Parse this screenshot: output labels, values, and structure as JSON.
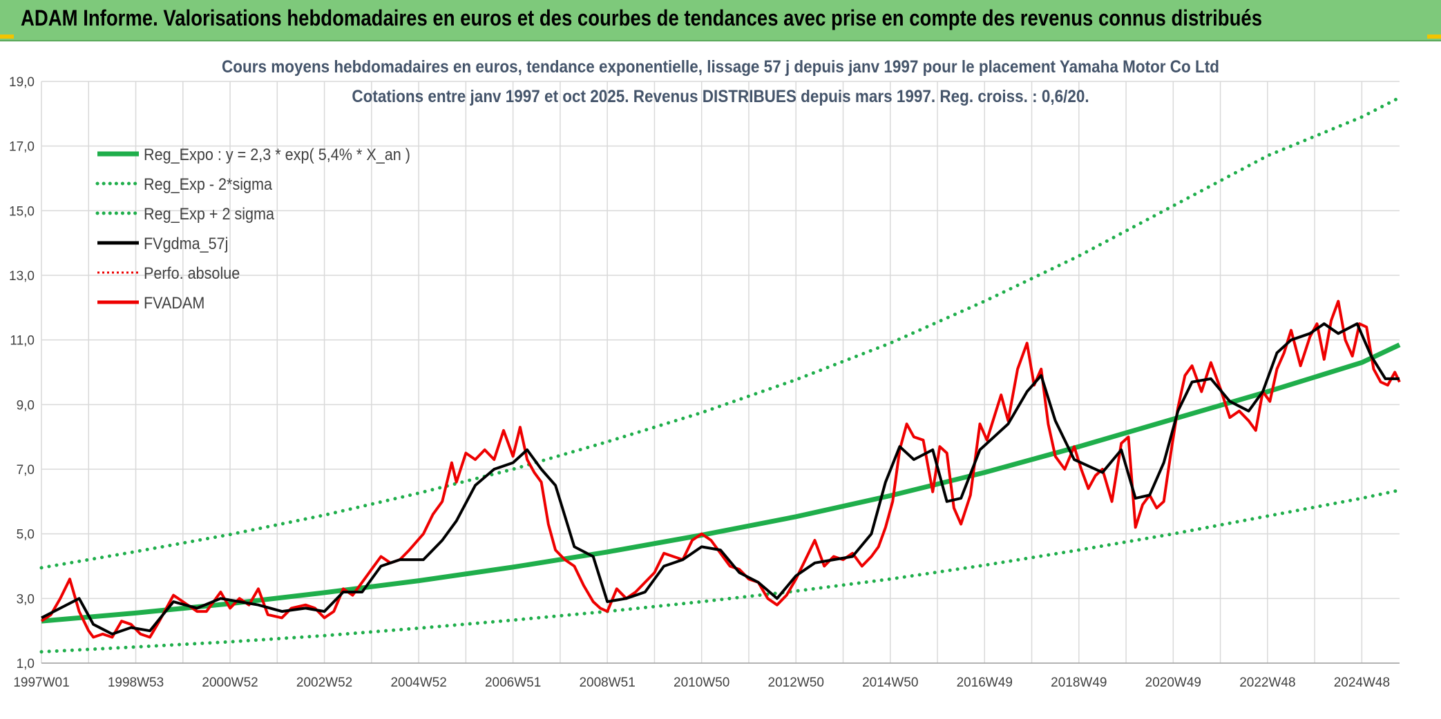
{
  "banner": {
    "title": "ADAM Informe. Valorisations hebdomadaires en euros et des courbes de tendances avec prise en compte des revenus connus distribués"
  },
  "colors": {
    "banner_bg": "#7ec97b",
    "trend": "#1fae4b",
    "band": "#1fae4b",
    "smooth": "#000000",
    "price": "#ee0000",
    "perf": "#ee0000",
    "grid": "#d9d9d9",
    "title_text": "#44546a"
  },
  "chart_data": {
    "type": "line",
    "title": "Cours moyens hebdomadaires en euros, tendance exponentielle, lissage 57 j depuis janv 1997 pour le placement Yamaha Motor Co Ltd",
    "subtitle": "Cotations entre janv 1997 et oct 2025. Revenus DISTRIBUES depuis mars 1997. Reg. croiss. : 0,6/20.",
    "xlabel": "",
    "ylabel": "",
    "x_range": [
      1997.0,
      2025.8
    ],
    "ylim": [
      1.0,
      19.0
    ],
    "y_ticks": [
      "1,0",
      "3,0",
      "5,0",
      "7,0",
      "9,0",
      "11,0",
      "13,0",
      "15,0",
      "17,0",
      "19,0"
    ],
    "y_tick_values": [
      1,
      3,
      5,
      7,
      9,
      11,
      13,
      15,
      17,
      19
    ],
    "x_ticks": [
      "1997W01",
      "1998W53",
      "2000W52",
      "2002W52",
      "2004W52",
      "2006W51",
      "2008W51",
      "2010W50",
      "2012W50",
      "2014W50",
      "2016W49",
      "2018W49",
      "2020W49",
      "2022W48",
      "2024W48"
    ],
    "x_tick_values": [
      1997.0,
      1999.0,
      2001.0,
      2003.0,
      2005.0,
      2007.0,
      2009.0,
      2011.0,
      2013.0,
      2015.0,
      2017.0,
      2019.0,
      2021.0,
      2023.0,
      2025.0
    ],
    "legend_position": "top-left",
    "legend": [
      "Reg_Expo : y = 2,3 * exp( 5,4% *  X_an )",
      "Reg_Exp - 2*sigma",
      "Reg_Exp + 2 sigma",
      "FVgdma_57j",
      "Perfo. absolue",
      "FVADAM"
    ],
    "series": [
      {
        "name": "Reg_Expo : y = 2,3 * exp( 5,4% *  X_an )",
        "style": "solid-thick",
        "x": [
          1997.0,
          1999.0,
          2001.0,
          2003.0,
          2005.0,
          2007.0,
          2009.0,
          2011.0,
          2013.0,
          2015.0,
          2017.0,
          2019.0,
          2021.0,
          2023.0,
          2025.0,
          2025.8
        ],
        "values": [
          2.3,
          2.55,
          2.84,
          3.18,
          3.55,
          3.97,
          4.44,
          4.96,
          5.53,
          6.18,
          6.9,
          7.7,
          8.55,
          9.4,
          10.3,
          10.85
        ]
      },
      {
        "name": "Reg_Exp - 2*sigma",
        "style": "dotted",
        "x": [
          1997.0,
          1999.0,
          2001.0,
          2003.0,
          2005.0,
          2007.0,
          2009.0,
          2011.0,
          2013.0,
          2015.0,
          2017.0,
          2019.0,
          2021.0,
          2023.0,
          2025.0,
          2025.8
        ],
        "values": [
          1.35,
          1.5,
          1.66,
          1.85,
          2.08,
          2.33,
          2.6,
          2.9,
          3.23,
          3.6,
          4.03,
          4.5,
          5.0,
          5.55,
          6.1,
          6.35
        ]
      },
      {
        "name": "Reg_Exp + 2 sigma",
        "style": "dotted",
        "x": [
          1997.0,
          1999.0,
          2001.0,
          2003.0,
          2005.0,
          2007.0,
          2009.0,
          2011.0,
          2013.0,
          2015.0,
          2017.0,
          2019.0,
          2021.0,
          2023.0,
          2025.0,
          2025.8
        ],
        "values": [
          3.95,
          4.45,
          4.98,
          5.58,
          6.26,
          7.0,
          7.85,
          8.75,
          9.77,
          10.9,
          12.2,
          13.6,
          15.15,
          16.7,
          17.9,
          18.5
        ]
      },
      {
        "name": "FVgdma_57j",
        "style": "solid",
        "x": [
          1997.0,
          1997.4,
          1997.8,
          1998.1,
          1998.5,
          1998.9,
          1999.3,
          1999.8,
          2000.3,
          2000.8,
          2001.2,
          2001.6,
          2002.1,
          2002.6,
          2003.0,
          2003.4,
          2003.8,
          2004.2,
          2004.6,
          2005.1,
          2005.5,
          2005.8,
          2006.2,
          2006.6,
          2007.0,
          2007.3,
          2007.6,
          2007.9,
          2008.3,
          2008.7,
          2009.0,
          2009.4,
          2009.8,
          2010.2,
          2010.6,
          2011.0,
          2011.4,
          2011.8,
          2012.2,
          2012.6,
          2013.0,
          2013.4,
          2013.8,
          2014.2,
          2014.6,
          2014.9,
          2015.2,
          2015.5,
          2015.9,
          2016.2,
          2016.5,
          2016.9,
          2017.2,
          2017.5,
          2017.9,
          2018.2,
          2018.5,
          2018.9,
          2019.2,
          2019.5,
          2019.9,
          2020.2,
          2020.5,
          2020.8,
          2021.1,
          2021.4,
          2021.8,
          2022.2,
          2022.6,
          2022.9,
          2023.2,
          2023.5,
          2023.9,
          2024.2,
          2024.5,
          2024.9,
          2025.2,
          2025.5,
          2025.8
        ],
        "values": [
          2.4,
          2.7,
          3.0,
          2.2,
          1.9,
          2.1,
          2.0,
          2.9,
          2.7,
          3.0,
          2.9,
          2.8,
          2.6,
          2.7,
          2.6,
          3.2,
          3.2,
          4.0,
          4.2,
          4.2,
          4.8,
          5.4,
          6.5,
          7.0,
          7.2,
          7.6,
          7.0,
          6.5,
          4.6,
          4.3,
          2.9,
          3.0,
          3.2,
          4.0,
          4.2,
          4.6,
          4.5,
          3.8,
          3.5,
          3.0,
          3.7,
          4.1,
          4.2,
          4.3,
          5.0,
          6.6,
          7.7,
          7.3,
          7.6,
          6.0,
          6.1,
          7.6,
          8.0,
          8.4,
          9.4,
          9.9,
          8.5,
          7.3,
          7.1,
          6.9,
          7.6,
          6.1,
          6.2,
          7.2,
          8.8,
          9.7,
          9.8,
          9.1,
          8.8,
          9.4,
          10.6,
          11.0,
          11.2,
          11.5,
          11.2,
          11.5,
          10.5,
          9.8,
          9.8
        ]
      },
      {
        "name": "FVADAM",
        "style": "solid-red",
        "x": [
          1997.0,
          1997.2,
          1997.4,
          1997.6,
          1997.8,
          1998.0,
          1998.1,
          1998.3,
          1998.5,
          1998.7,
          1998.9,
          1999.1,
          1999.3,
          1999.5,
          1999.8,
          2000.0,
          2000.3,
          2000.5,
          2000.8,
          2001.0,
          2001.2,
          2001.4,
          2001.6,
          2001.8,
          2002.1,
          2002.3,
          2002.6,
          2002.8,
          2003.0,
          2003.2,
          2003.4,
          2003.6,
          2003.8,
          2004.0,
          2004.2,
          2004.4,
          2004.6,
          2004.8,
          2005.1,
          2005.3,
          2005.5,
          2005.7,
          2005.8,
          2006.0,
          2006.2,
          2006.4,
          2006.6,
          2006.8,
          2007.0,
          2007.15,
          2007.3,
          2007.45,
          2007.6,
          2007.75,
          2007.9,
          2008.1,
          2008.3,
          2008.5,
          2008.7,
          2008.85,
          2009.0,
          2009.2,
          2009.4,
          2009.6,
          2009.8,
          2010.0,
          2010.2,
          2010.4,
          2010.6,
          2010.8,
          2011.0,
          2011.2,
          2011.4,
          2011.6,
          2011.8,
          2012.0,
          2012.2,
          2012.4,
          2012.6,
          2012.8,
          2013.0,
          2013.2,
          2013.4,
          2013.6,
          2013.8,
          2014.0,
          2014.2,
          2014.4,
          2014.6,
          2014.75,
          2014.9,
          2015.05,
          2015.2,
          2015.35,
          2015.5,
          2015.7,
          2015.9,
          2016.05,
          2016.2,
          2016.35,
          2016.5,
          2016.7,
          2016.9,
          2017.05,
          2017.2,
          2017.35,
          2017.5,
          2017.7,
          2017.9,
          2018.05,
          2018.2,
          2018.35,
          2018.5,
          2018.7,
          2018.9,
          2019.05,
          2019.2,
          2019.35,
          2019.5,
          2019.7,
          2019.9,
          2020.05,
          2020.2,
          2020.35,
          2020.5,
          2020.65,
          2020.8,
          2020.95,
          2021.1,
          2021.25,
          2021.4,
          2021.6,
          2021.8,
          2022.0,
          2022.2,
          2022.4,
          2022.6,
          2022.75,
          2022.9,
          2023.05,
          2023.2,
          2023.35,
          2023.5,
          2023.7,
          2023.9,
          2024.05,
          2024.2,
          2024.35,
          2024.5,
          2024.65,
          2024.8,
          2024.95,
          2025.1,
          2025.25,
          2025.4,
          2025.55,
          2025.7,
          2025.8
        ],
        "values": [
          2.3,
          2.5,
          3.0,
          3.6,
          2.6,
          2.0,
          1.8,
          1.9,
          1.8,
          2.3,
          2.2,
          1.9,
          1.8,
          2.3,
          3.1,
          2.9,
          2.6,
          2.6,
          3.2,
          2.7,
          3.0,
          2.8,
          3.3,
          2.5,
          2.4,
          2.7,
          2.8,
          2.7,
          2.4,
          2.6,
          3.3,
          3.1,
          3.5,
          3.9,
          4.3,
          4.1,
          4.2,
          4.5,
          5.0,
          5.6,
          6.0,
          7.2,
          6.6,
          7.5,
          7.3,
          7.6,
          7.3,
          8.2,
          7.4,
          8.3,
          7.3,
          6.9,
          6.6,
          5.3,
          4.5,
          4.2,
          4.0,
          3.4,
          2.9,
          2.7,
          2.6,
          3.3,
          3.0,
          3.2,
          3.5,
          3.8,
          4.4,
          4.3,
          4.2,
          4.8,
          5.0,
          4.8,
          4.4,
          4.0,
          3.9,
          3.6,
          3.5,
          3.0,
          2.8,
          3.1,
          3.6,
          4.2,
          4.8,
          4.0,
          4.3,
          4.2,
          4.4,
          4.0,
          4.3,
          4.6,
          5.2,
          6.0,
          7.6,
          8.4,
          8.0,
          7.9,
          6.3,
          7.7,
          7.5,
          5.8,
          5.3,
          6.2,
          8.4,
          7.9,
          8.6,
          9.3,
          8.5,
          10.1,
          10.9,
          9.6,
          10.1,
          8.4,
          7.4,
          7.0,
          7.7,
          7.0,
          6.4,
          6.8,
          7.0,
          6.0,
          7.8,
          8.0,
          5.2,
          5.9,
          6.2,
          5.8,
          6.0,
          7.5,
          8.9,
          9.9,
          10.2,
          9.4,
          10.3,
          9.5,
          8.6,
          8.8,
          8.5,
          8.2,
          9.4,
          9.1,
          10.1,
          10.6,
          11.3,
          10.2,
          11.1,
          11.5,
          10.4,
          11.6,
          12.2,
          11.0,
          10.5,
          11.5,
          11.4,
          10.1,
          9.7,
          9.6,
          10.0,
          9.7
        ]
      }
    ]
  }
}
